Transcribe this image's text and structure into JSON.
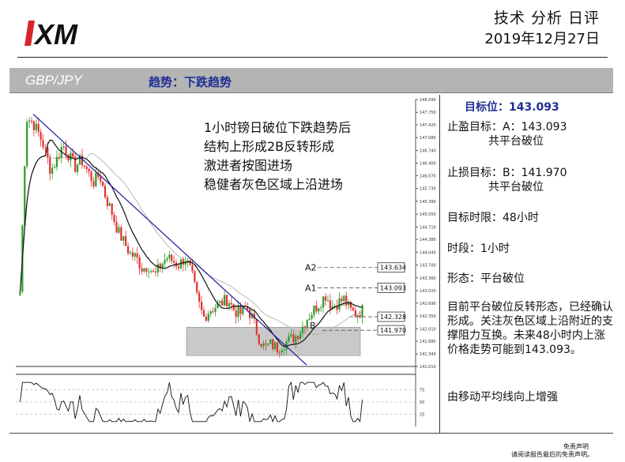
{
  "header": {
    "brand": "XM",
    "title": "技术 分析 日评",
    "date": "2019年12月27日"
  },
  "band": {
    "pair": "GBP/JPY",
    "trend": "趋势：下跌趋势"
  },
  "annotation": [
    "1小时镑日破位下跌趋势后",
    "结构上形成2B反转形成",
    "激进者按图进场",
    "稳健者灰色区域上沿进场"
  ],
  "sidebar": {
    "target": "目标位：143.093",
    "take_profit_label": "止盈目标：A：143.093",
    "take_profit_sub": "共平台破位",
    "stop_loss_label": "止损目标：B：141.970",
    "stop_loss_sub": "共平台破位",
    "time_limit": "目标时限：48小时",
    "timeframe": "时段：1小时",
    "pattern": "形态：平台破位",
    "comment": "目前平台破位反转形态，已经确认形成。关注灰色区域上沿附近的支撑阻力互换。未来48小时内上涨价格走势可能到143.093。",
    "ma_note": "由移动平均线向上增强"
  },
  "chart_data": {
    "type": "candlestick",
    "symbol": "GBP/JPY",
    "timeframe": "1H",
    "y_ticks": [
      "148.090",
      "147.750",
      "147.420",
      "147.080",
      "146.740",
      "146.400",
      "146.070",
      "145.730",
      "145.390",
      "145.050",
      "144.710",
      "144.380",
      "144.040",
      "143.700",
      "143.360",
      "143.020",
      "142.690",
      "142.350",
      "142.010",
      "141.680",
      "141.340",
      "141.010"
    ],
    "ylim": [
      141.01,
      148.09
    ],
    "close_path": [
      143.0,
      147.6,
      147.5,
      147.2,
      146.8,
      146.2,
      146.5,
      146.9,
      146.6,
      146.3,
      146.5,
      146.2,
      145.9,
      146.1,
      145.5,
      145.1,
      144.6,
      144.3,
      144.0,
      143.9,
      143.6,
      143.7,
      143.4,
      143.7,
      143.9,
      143.8,
      143.7,
      143.9,
      143.5,
      142.8,
      142.3,
      142.5,
      142.6,
      142.7,
      142.8,
      142.5,
      142.4,
      142.6,
      142.3,
      141.8,
      141.5,
      141.6,
      141.5,
      141.6,
      141.7,
      141.8,
      142.0,
      142.3,
      142.5,
      142.7,
      142.9,
      142.6,
      142.7,
      142.8,
      142.5,
      142.4,
      142.5
    ],
    "levels": [
      {
        "label": "A2",
        "value": "143.634"
      },
      {
        "label": "A1",
        "value": "143.093"
      },
      {
        "label": "",
        "value": "142.328"
      },
      {
        "label": "B",
        "value": "141.970"
      }
    ],
    "highlight_box": {
      "from": 141.3,
      "to": 142.05
    },
    "oscillator": {
      "levels": [
        "75",
        "50",
        "25"
      ]
    },
    "colors": {
      "up": "#2a9d2a",
      "down": "#e33030",
      "trendline": "#1a1aa0",
      "ma_fast": "#111111",
      "ma_slow": "#b8b8b8",
      "zone": "#c9c9c9"
    }
  }
}
